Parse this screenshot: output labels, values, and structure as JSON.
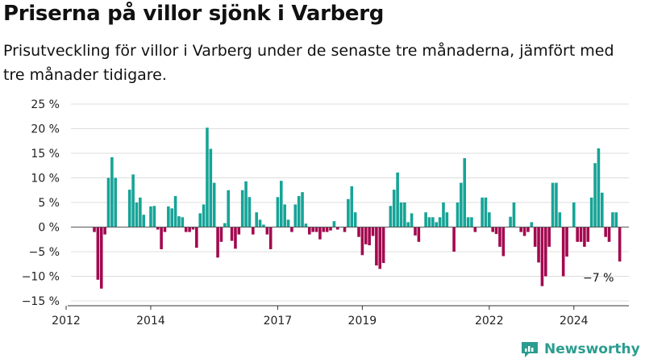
{
  "title": "Priserna på villor sjönk i Varberg",
  "subtitle": "Prisutveckling för villor i Varberg under de senaste tre månaderna, jämfört med tre månader tidigare.",
  "brand": {
    "name": "Newsworthy",
    "color": "#2a9d8f"
  },
  "colors": {
    "positive": "#16a497",
    "negative": "#a3094f",
    "grid": "#dddddd",
    "axis": "#333333"
  },
  "annotation": "−7 %",
  "chart_data": {
    "type": "bar",
    "xlabel": "",
    "ylabel": "",
    "ylim": [
      -15,
      25
    ],
    "yticks": [
      -15,
      -10,
      -5,
      0,
      5,
      10,
      15,
      20,
      25
    ],
    "ytick_labels": [
      "−15 %",
      "−10 %",
      "−5 %",
      "0 %",
      "5 %",
      "10 %",
      "15 %",
      "20 %",
      "25 %"
    ],
    "xlim": [
      2012,
      2025.3
    ],
    "xticks": [
      2012,
      2014,
      2017,
      2019,
      2022,
      2024
    ],
    "grid": true,
    "x_start": 2012.667,
    "x_step_months": 1,
    "values": [
      -1,
      -10.7,
      -12.5,
      -1.5,
      10,
      14.2,
      10,
      null,
      null,
      null,
      7.6,
      10.7,
      5,
      6,
      2.5,
      null,
      4.2,
      4.3,
      -0.5,
      -4.5,
      -1,
      4.2,
      3.8,
      6.3,
      2.2,
      2,
      -1,
      -1,
      -0.5,
      -4.2,
      2.8,
      4.6,
      20.2,
      15.9,
      9,
      -6.2,
      -3,
      0.8,
      7.5,
      -2.8,
      -4.4,
      -1.5,
      7.5,
      9.3,
      6.1,
      -1.5,
      3,
      1.5,
      0.5,
      -1.5,
      -4.5,
      null,
      6.1,
      9.4,
      4.6,
      1.5,
      -1,
      4.6,
      6.3,
      7.1,
      0.7,
      -1.5,
      -1,
      -1,
      -2.5,
      -1,
      -1,
      -0.7,
      1.2,
      -0.5,
      null,
      -1,
      5.7,
      8.3,
      3,
      -2,
      -5.7,
      -3.5,
      -3.7,
      -1.8,
      -7.8,
      -8.5,
      -7.3,
      null,
      4.3,
      7.6,
      11.1,
      5,
      5,
      1,
      2.8,
      -1.7,
      -3,
      null,
      3,
      2,
      2,
      1,
      2,
      5,
      3,
      null,
      -5,
      5,
      9,
      14,
      2,
      2,
      -1,
      null,
      6,
      6,
      3,
      -1,
      -1.4,
      -4,
      -5.9,
      null,
      2.1,
      5,
      null,
      -1,
      -1.8,
      -1,
      1,
      -4,
      -7.2,
      -12,
      -10,
      -4,
      9,
      9,
      3,
      -10,
      -6,
      null,
      5,
      -3,
      -3,
      -4,
      -3,
      6,
      13,
      16,
      7,
      -2,
      -3,
      3,
      3,
      -7
    ]
  }
}
